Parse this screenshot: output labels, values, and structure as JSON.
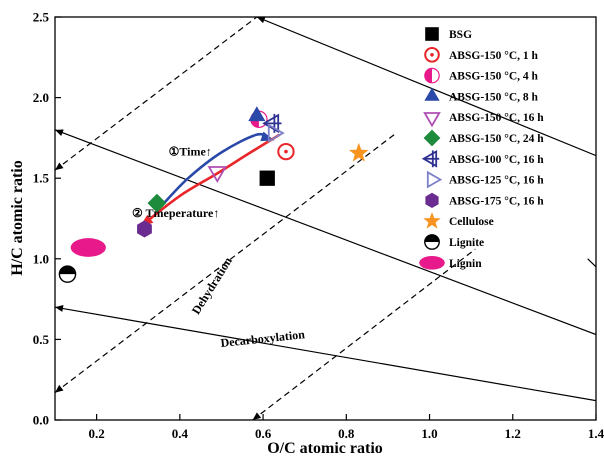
{
  "chart_data": {
    "type": "scatter",
    "title": "",
    "xlabel": "O/C atomic ratio",
    "ylabel": "H/C atomic ratio",
    "xlim": [
      0.1,
      1.4
    ],
    "ylim": [
      0,
      2.5
    ],
    "xticks": [
      0.2,
      0.4,
      0.6,
      0.8,
      1.0,
      1.2,
      1.4
    ],
    "xtick_labels": [
      "0.2",
      "0.4",
      "0.6",
      "0.8",
      "1.0",
      "1.2",
      "1.4"
    ],
    "yticks": [
      0.0,
      0.5,
      1.0,
      1.5,
      2.0,
      2.5
    ],
    "ytick_labels": [
      "0.0",
      "0.5",
      "1.0",
      "1.5",
      "2.0",
      "2.5"
    ],
    "grid": false,
    "legend_position": "top-right",
    "series": [
      {
        "name": "BSG",
        "marker": "square",
        "color": "#000000",
        "x": 0.61,
        "y": 1.5
      },
      {
        "name": "ABSG-150 °C, 1 h",
        "marker": "circle-dot",
        "color": "#e8262a",
        "x": 0.655,
        "y": 1.665
      },
      {
        "name": "ABSG-150 °C, 4 h",
        "marker": "half-circle",
        "color": "#e8198b",
        "x": 0.59,
        "y": 1.865
      },
      {
        "name": "ABSG-150 °C, 8 h",
        "marker": "triangle-up",
        "color": "#2a49a8",
        "x": 0.585,
        "y": 1.885
      },
      {
        "name": "ABSG-150 °C, 16 h",
        "marker": "triangle-down-open",
        "color": "#b04fb5",
        "x": 0.49,
        "y": 1.54
      },
      {
        "name": "ABSG-150 °C, 24 h",
        "marker": "diamond",
        "color": "#1e8a3b",
        "x": 0.345,
        "y": 1.345
      },
      {
        "name": "ABSG-100 °C, 16 h",
        "marker": "triangle-left-cross",
        "color": "#2e3192",
        "x": 0.625,
        "y": 1.84
      },
      {
        "name": "ABSG-125 °C, 16 h",
        "marker": "triangle-right-open",
        "color": "#7b80c9",
        "x": 0.625,
        "y": 1.78
      },
      {
        "name": "ABSG-175 °C, 16 h",
        "marker": "hexagon",
        "color": "#6a2c91",
        "x": 0.315,
        "y": 1.185
      },
      {
        "name": "Cellulose",
        "marker": "star",
        "color": "#f7931e",
        "x": 0.83,
        "y": 1.655
      },
      {
        "name": "Lignite",
        "marker": "half-black-circle",
        "color": "#000000",
        "x": 0.13,
        "y": 0.905
      },
      {
        "name": "Lignin",
        "marker": "ellipse",
        "color": "#e8198b",
        "x": 0.18,
        "y": 1.07
      }
    ],
    "annotations": [
      {
        "text": "①Time↑",
        "x": 0.425,
        "y": 1.64,
        "rotate": 0
      },
      {
        "text": "② Tmeperature↑",
        "x": 0.39,
        "y": 1.26,
        "rotate": 0
      },
      {
        "text": "Dehydration",
        "x": 0.485,
        "y": 0.82,
        "rotate": -58
      },
      {
        "text": "Decarboxylation",
        "x": 0.6,
        "y": 0.48,
        "rotate": -6
      }
    ],
    "arrows": [
      {
        "style": "solid-blue",
        "color": "#2a49a8",
        "path": [
          [
            0.36,
            1.34
          ],
          [
            0.42,
            1.5
          ],
          [
            0.5,
            1.66
          ],
          [
            0.585,
            1.77
          ],
          [
            0.62,
            1.74
          ]
        ]
      },
      {
        "style": "solid-red",
        "color": "#e8262a",
        "path": [
          [
            0.64,
            1.77
          ],
          [
            0.57,
            1.66
          ],
          [
            0.49,
            1.53
          ],
          [
            0.4,
            1.39
          ],
          [
            0.31,
            1.21
          ]
        ]
      }
    ],
    "reference_lines": [
      {
        "style": "dashed",
        "from": [
          0.1,
          1.55
        ],
        "to": [
          0.585,
          2.5
        ]
      },
      {
        "style": "dashed",
        "from": [
          0.1,
          0.17
        ],
        "to": [
          0.915,
          1.77
        ]
      },
      {
        "style": "dashed",
        "from": [
          0.575,
          0.0
        ],
        "to": [
          1.11,
          1.06
        ]
      },
      {
        "style": "solid",
        "from": [
          0.585,
          2.5
        ],
        "to": [
          1.4,
          1.64
        ]
      },
      {
        "style": "solid",
        "from": [
          0.1,
          1.8
        ],
        "to": [
          1.4,
          0.53
        ]
      },
      {
        "style": "solid",
        "from": [
          0.1,
          0.7
        ],
        "to": [
          1.4,
          0.12
        ]
      },
      {
        "style": "solid",
        "from": [
          1.38,
          1.0
        ],
        "to": [
          1.4,
          0.95
        ]
      }
    ],
    "arrowheads": [
      {
        "tip": [
          0.585,
          2.5
        ],
        "from": [
          0.595,
          2.49
        ]
      },
      {
        "tip": [
          0.1,
          1.55
        ],
        "from": [
          0.125,
          1.598
        ]
      },
      {
        "tip": [
          0.1,
          0.17
        ],
        "from": [
          0.125,
          0.22
        ]
      },
      {
        "tip": [
          0.575,
          0.0
        ],
        "from": [
          0.6,
          0.05
        ]
      },
      {
        "tip": [
          0.1,
          1.8
        ],
        "from": [
          0.13,
          1.77
        ]
      },
      {
        "tip": [
          0.1,
          0.7
        ],
        "from": [
          0.13,
          0.687
        ]
      }
    ]
  }
}
